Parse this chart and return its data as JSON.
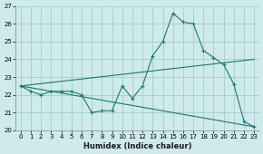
{
  "xlabel": "Humidex (Indice chaleur)",
  "ylabel": "",
  "bg_color": "#ceeaea",
  "grid_color": "#a8cccc",
  "line_color": "#1a7a6e",
  "xlim": [
    -0.5,
    23.5
  ],
  "ylim": [
    20,
    27
  ],
  "yticks": [
    20,
    21,
    22,
    23,
    24,
    25,
    26,
    27
  ],
  "xticks": [
    0,
    1,
    2,
    3,
    4,
    5,
    6,
    7,
    8,
    9,
    10,
    11,
    12,
    13,
    14,
    15,
    16,
    17,
    18,
    19,
    20,
    21,
    22,
    23
  ],
  "line1_x": [
    0,
    1,
    2,
    3,
    4,
    5,
    6,
    7,
    8,
    9,
    10,
    11,
    12,
    13,
    14,
    15,
    16,
    17,
    18,
    19,
    20,
    21,
    22,
    23
  ],
  "line1_y": [
    22.5,
    22.2,
    22.0,
    22.2,
    22.2,
    22.2,
    22.0,
    21.0,
    21.1,
    21.1,
    22.5,
    21.8,
    22.5,
    24.2,
    25.0,
    26.6,
    26.1,
    26.0,
    24.5,
    24.1,
    23.7,
    22.6,
    20.5,
    20.2
  ],
  "line2_x": [
    0,
    23
  ],
  "line2_y": [
    22.5,
    24.0
  ],
  "line3_x": [
    0,
    23
  ],
  "line3_y": [
    22.5,
    20.2
  ]
}
